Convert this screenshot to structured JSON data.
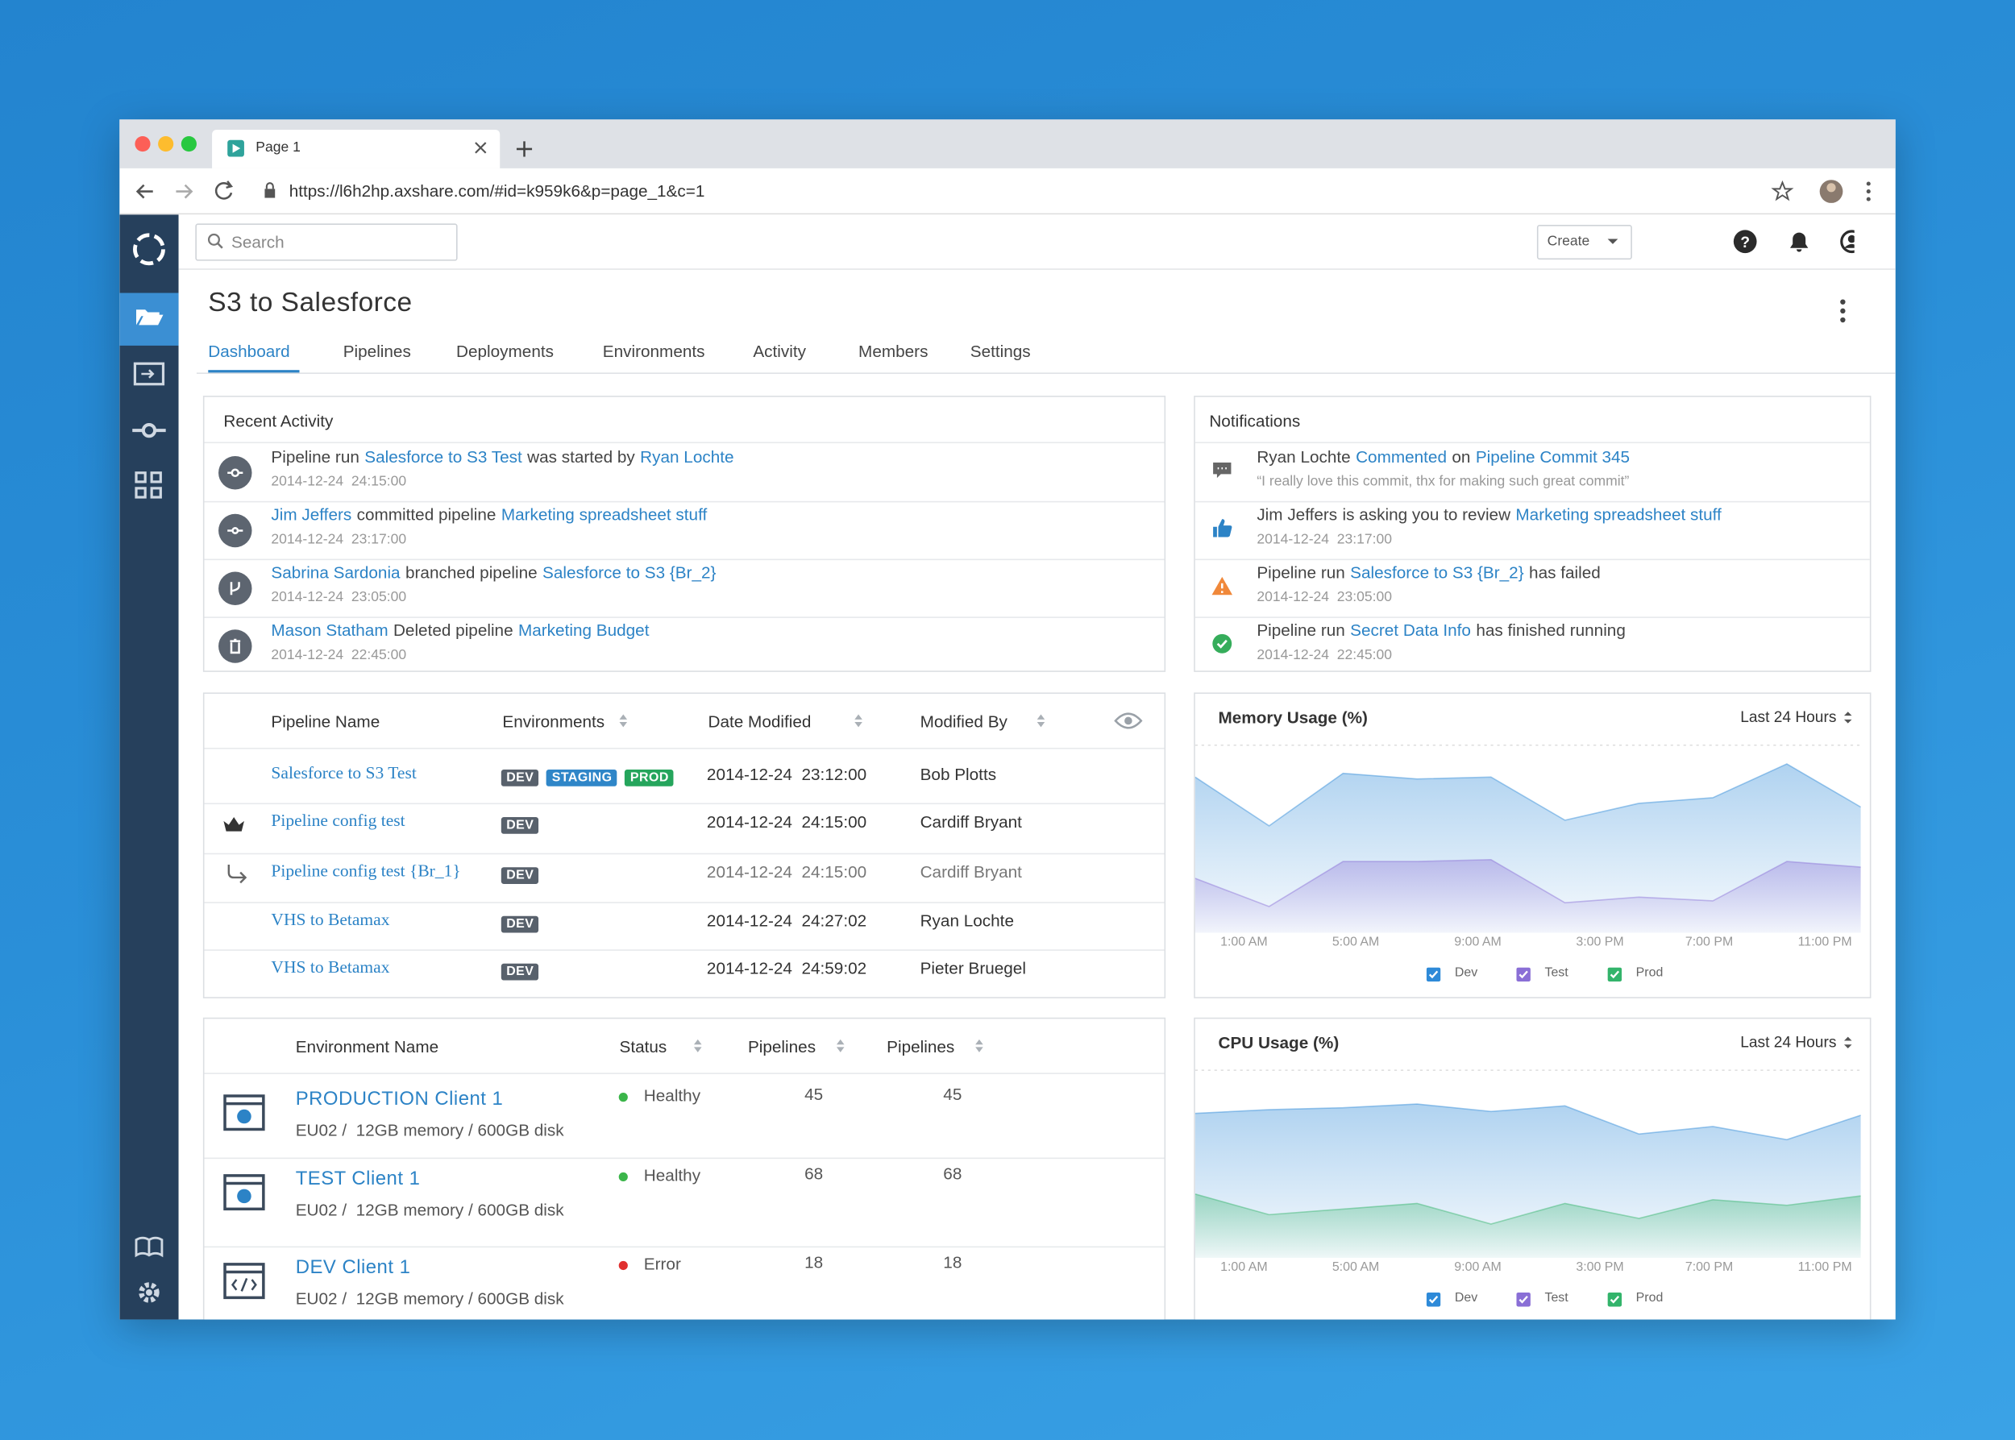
{
  "browser": {
    "tab_title": "Page 1",
    "url": "https://l6h2hp.axshare.com/#id=k959k6&p=page_1&c=1"
  },
  "topbar": {
    "search": "Search",
    "create": "Create"
  },
  "project": {
    "title": "S3 to Salesforce",
    "tabs": [
      "Dashboard",
      "Pipelines",
      "Deployments",
      "Environments",
      "Activity",
      "Members",
      "Settings"
    ],
    "active_tab": 0
  },
  "recent_activity": {
    "title": "Recent Activity",
    "items": [
      {
        "segments": [
          {
            "text": "Pipeline run"
          },
          {
            "text": "Salesforce to S3 Test",
            "link": true
          },
          {
            "text": "was started by"
          },
          {
            "text": "Ryan Lochte",
            "link": true
          }
        ],
        "time": "2014-12-24  24:15:00"
      },
      {
        "segments": [
          {
            "text": "Jim Jeffers",
            "link": true
          },
          {
            "text": "committed pipeline"
          },
          {
            "text": "Marketing spreadsheet stuff",
            "link": true
          }
        ],
        "time": "2014-12-24  23:17:00"
      },
      {
        "segments": [
          {
            "text": "Sabrina Sardonia",
            "link": true
          },
          {
            "text": "branched pipeline"
          },
          {
            "text": "Salesforce to S3 {Br_2}",
            "link": true
          }
        ],
        "time": "2014-12-24  23:05:00"
      },
      {
        "segments": [
          {
            "text": "Mason Statham",
            "link": true
          },
          {
            "text": "Deleted pipeline"
          },
          {
            "text": "Marketing Budget",
            "link": true
          }
        ],
        "time": "2014-12-24  22:45:00"
      }
    ]
  },
  "notifications": {
    "title": "Notifications",
    "items": [
      {
        "segments": [
          {
            "text": "Ryan Lochte"
          },
          {
            "text": "Commented",
            "link": true
          },
          {
            "text": "on"
          },
          {
            "text": "Pipeline Commit 345",
            "link": true
          }
        ],
        "time": "“I really love this commit, thx for making such great commit”"
      },
      {
        "segments": [
          {
            "text": "Jim Jeffers"
          },
          {
            "text": "is asking you to review"
          },
          {
            "text": "Marketing spreadsheet stuff",
            "link": true
          }
        ],
        "time": "2014-12-24  23:17:00"
      },
      {
        "segments": [
          {
            "text": "Pipeline run"
          },
          {
            "text": "Salesforce to S3 {Br_2}",
            "link": true
          },
          {
            "text": "has failed"
          }
        ],
        "time": "2014-12-24  23:05:00"
      },
      {
        "segments": [
          {
            "text": "Pipeline run"
          },
          {
            "text": "Secret Data Info",
            "link": true
          },
          {
            "text": "has finished running"
          }
        ],
        "time": "2014-12-24  22:45:00"
      }
    ]
  },
  "pipelines": {
    "columns": [
      "Pipeline Name",
      "Environments",
      "Date Modified",
      "Modified By"
    ],
    "tag_colors": {
      "DEV": "#58616c",
      "STAGING": "#2f86c8",
      "PROD": "#25a55c"
    },
    "rows": [
      {
        "name": "Salesforce to S3 Test",
        "environments": [
          "DEV",
          "STAGING",
          "PROD"
        ],
        "date": "2014-12-24  23:12:00",
        "modified_by": "Bob Plotts"
      },
      {
        "name": "Pipeline config test",
        "environments": [
          "DEV"
        ],
        "date": "2014-12-24  24:15:00",
        "modified_by": "Cardiff Bryant"
      },
      {
        "name": "Pipeline config test {Br_1}",
        "environments": [
          "DEV"
        ],
        "date": "2014-12-24  24:15:00",
        "modified_by": "Cardiff Bryant"
      },
      {
        "name": "VHS to Betamax",
        "environments": [
          "DEV"
        ],
        "date": "2014-12-24  24:27:02",
        "modified_by": "Ryan Lochte"
      },
      {
        "name": "VHS to Betamax",
        "environments": [
          "DEV"
        ],
        "date": "2014-12-24  24:59:02",
        "modified_by": "Pieter Bruegel"
      }
    ]
  },
  "environments": {
    "columns": [
      "Environment Name",
      "Status",
      "Pipelines",
      "Pipelines"
    ],
    "rows": [
      {
        "name": "PRODUCTION Client 1",
        "details": "EU02 /  12GB memory / 600GB disk",
        "status": "Healthy",
        "status_color": "#3bb54a",
        "pipelines": 45,
        "pipelines_2": 45
      },
      {
        "name": "TEST Client 1",
        "details": "EU02 /  12GB memory / 600GB disk",
        "status": "Healthy",
        "status_color": "#3bb54a",
        "pipelines": 68,
        "pipelines_2": 68
      },
      {
        "name": "DEV Client 1",
        "details": "EU02 /  12GB memory / 600GB disk",
        "status": "Error",
        "status_color": "#e0302f",
        "pipelines": 18,
        "pipelines_2": 18
      }
    ]
  },
  "chart_data": [
    {
      "type": "area",
      "title": "Memory Usage (%)",
      "range_label": "Last 24 Hours",
      "ylim": [
        0,
        100
      ],
      "xlabels": [
        "1:00 AM",
        "5:00 AM",
        "9:00 AM",
        "3:00 PM",
        "7:00 PM",
        "11:00 PM"
      ],
      "series": [
        {
          "name": "Dev",
          "color": "#2e8ad8",
          "values": [
            83,
            57,
            85,
            82,
            83,
            60,
            69,
            72,
            90,
            67
          ]
        },
        {
          "name": "Test",
          "color": "#8a6fd6",
          "values": [
            29,
            14,
            38,
            38,
            39,
            16,
            19,
            17,
            38,
            35
          ]
        },
        {
          "name": "Prod",
          "color": "#33b46b",
          "values": [
            null,
            null,
            null,
            null,
            null,
            null,
            null,
            null,
            null,
            null
          ]
        }
      ]
    },
    {
      "type": "area",
      "title": "CPU Usage (%)",
      "range_label": "Last 24 Hours",
      "ylim": [
        0,
        100
      ],
      "xlabels": [
        "1:00 AM",
        "5:00 AM",
        "9:00 AM",
        "3:00 PM",
        "7:00 PM",
        "11:00 PM"
      ],
      "series": [
        {
          "name": "Dev",
          "color": "#2e8ad8",
          "values": [
            77,
            79,
            80,
            82,
            78,
            81,
            66,
            70,
            63,
            76
          ]
        },
        {
          "name": "Test",
          "color": "#8a6fd6",
          "values": [
            null,
            null,
            null,
            null,
            null,
            null,
            null,
            null,
            null,
            null
          ]
        },
        {
          "name": "Prod",
          "color": "#33b46b",
          "values": [
            34,
            23,
            26,
            29,
            18,
            29,
            21,
            31,
            28,
            33
          ]
        }
      ]
    }
  ]
}
